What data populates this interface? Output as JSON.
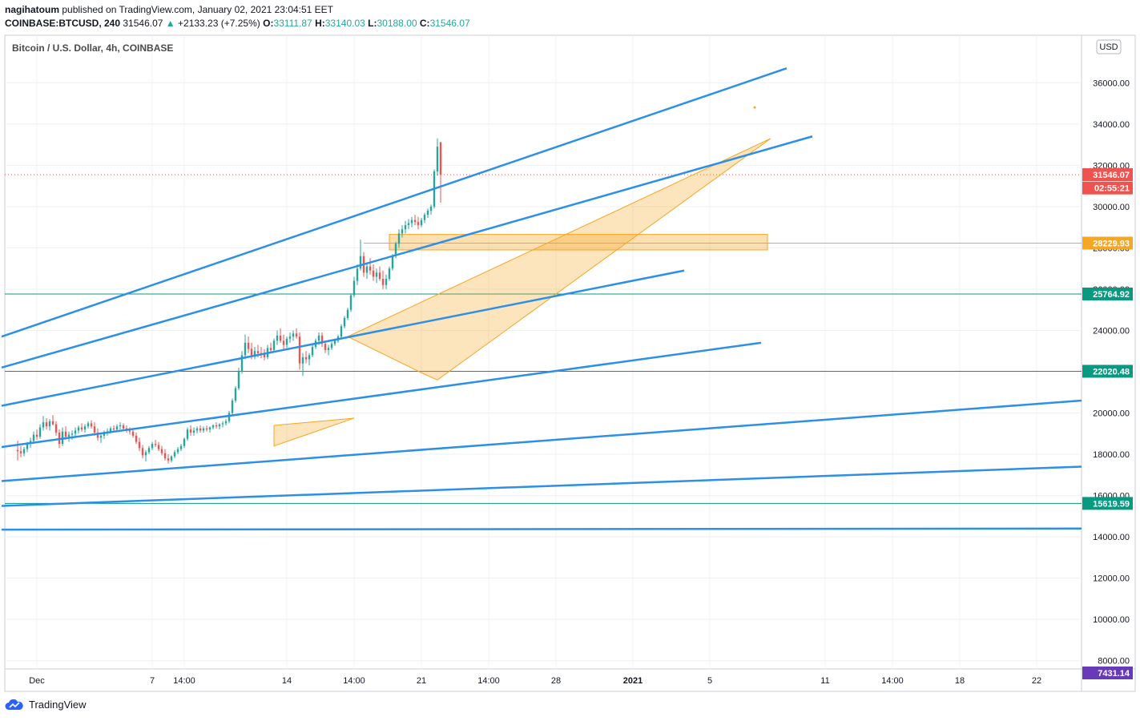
{
  "header": {
    "author": "nagihatoum",
    "published_text": "published on TradingView.com, January 02, 2021 23:04:51 EET",
    "symbol": "COINBASE:BTCUSD, 240",
    "last": "31546.07",
    "arrow": "▲",
    "change": "+2133.23 (+7.25%)",
    "o_label": "O:",
    "o": "33111.87",
    "h_label": "H:",
    "h": "33140.03",
    "l_label": "L:",
    "l": "30188.00",
    "c_label": "C:",
    "c": "31546.07"
  },
  "footer": {
    "brand": "TradingView"
  },
  "chart_data": {
    "type": "candlestick",
    "title": "Bitcoin / U.S. Dollar, 4h, COINBASE",
    "currency": "USD",
    "ylim": [
      7600,
      38300
    ],
    "y_ticks": [
      {
        "label": "36000.00",
        "value": 36000
      },
      {
        "label": "34000.00",
        "value": 34000
      },
      {
        "label": "32000.00",
        "value": 32000
      },
      {
        "label": "30000.00",
        "value": 30000
      },
      {
        "label": "28000.00",
        "value": 28000
      },
      {
        "label": "26000.00",
        "value": 26000
      },
      {
        "label": "24000.00",
        "value": 24000
      },
      {
        "label": "22000.00",
        "value": 22000
      },
      {
        "label": "20000.00",
        "value": 20000
      },
      {
        "label": "18000.00",
        "value": 18000
      },
      {
        "label": "16000.00",
        "value": 16000
      },
      {
        "label": "14000.00",
        "value": 14000
      },
      {
        "label": "12000.00",
        "value": 12000
      },
      {
        "label": "10000.00",
        "value": 10000
      },
      {
        "label": "8000.00",
        "value": 8000
      }
    ],
    "x_ticks": [
      {
        "label": "Dec",
        "bar": 6
      },
      {
        "label": "7",
        "bar": 42
      },
      {
        "label": "14:00",
        "bar": 52
      },
      {
        "label": "14",
        "bar": 84
      },
      {
        "label": "14:00",
        "bar": 105
      },
      {
        "label": "21",
        "bar": 126
      },
      {
        "label": "14:00",
        "bar": 147
      },
      {
        "label": "28",
        "bar": 168
      },
      {
        "label": "2021",
        "bar": 192
      },
      {
        "label": "5",
        "bar": 216
      },
      {
        "label": "11",
        "bar": 252
      },
      {
        "label": "14:00",
        "bar": 273
      },
      {
        "label": "18",
        "bar": 294
      },
      {
        "label": "22",
        "bar": 318
      }
    ],
    "x_range_bars": [
      -4,
      332
    ],
    "price_levels": [
      {
        "label": "31546.07",
        "value": 31546.07,
        "color": "#ef5350",
        "style": "dotted"
      },
      {
        "label": "28229.93",
        "value": 28229.93,
        "color": "#f5a623",
        "style": "solid"
      },
      {
        "label": "25764.92",
        "value": 25764.92,
        "color": "#089981",
        "style": "solid"
      },
      {
        "label": "22020.48",
        "value": 22020.48,
        "color": "#089981",
        "style": "solid"
      },
      {
        "label": "15619.59",
        "value": 15619.59,
        "color": "#089981",
        "style": "solid"
      }
    ],
    "countdown": {
      "label": "02:55:21",
      "value": 30900
    },
    "low_label": {
      "label": "7431.14",
      "value": 7431.14
    },
    "candles": [
      [
        18200,
        18650,
        17700,
        18150
      ],
      [
        18150,
        18400,
        17850,
        18050
      ],
      [
        18050,
        18350,
        17900,
        18250
      ],
      [
        18250,
        18600,
        18100,
        18500
      ],
      [
        18500,
        18800,
        18300,
        18650
      ],
      [
        18650,
        19100,
        18500,
        18950
      ],
      [
        18950,
        19200,
        18700,
        18850
      ],
      [
        18850,
        19450,
        18750,
        19300
      ],
      [
        19300,
        19850,
        19150,
        19550
      ],
      [
        19550,
        19750,
        19200,
        19350
      ],
      [
        19350,
        19700,
        19150,
        19600
      ],
      [
        19600,
        19900,
        19400,
        19450
      ],
      [
        19450,
        19600,
        18900,
        19050
      ],
      [
        19050,
        19200,
        18300,
        18500
      ],
      [
        18500,
        19300,
        18400,
        19100
      ],
      [
        19100,
        19350,
        18700,
        18850
      ],
      [
        18850,
        19100,
        18600,
        18950
      ],
      [
        18950,
        19150,
        18700,
        19000
      ],
      [
        19000,
        19300,
        18850,
        19150
      ],
      [
        19150,
        19400,
        19000,
        19300
      ],
      [
        19300,
        19500,
        19100,
        19200
      ],
      [
        19200,
        19450,
        19050,
        19350
      ],
      [
        19350,
        19600,
        19250,
        19500
      ],
      [
        19500,
        19650,
        19250,
        19350
      ],
      [
        19350,
        19550,
        18900,
        19050
      ],
      [
        19050,
        19250,
        18650,
        18800
      ],
      [
        18800,
        19000,
        18550,
        18900
      ],
      [
        18900,
        19150,
        18750,
        19050
      ],
      [
        19050,
        19250,
        18900,
        19100
      ],
      [
        19100,
        19350,
        19000,
        19250
      ],
      [
        19250,
        19400,
        19100,
        19200
      ],
      [
        19200,
        19450,
        19100,
        19350
      ],
      [
        19350,
        19550,
        19200,
        19400
      ],
      [
        19400,
        19500,
        19150,
        19250
      ],
      [
        19250,
        19400,
        19050,
        19150
      ],
      [
        19150,
        19300,
        18950,
        19100
      ],
      [
        19100,
        19250,
        18800,
        18900
      ],
      [
        18900,
        19050,
        18500,
        18600
      ],
      [
        18600,
        18800,
        18150,
        18300
      ],
      [
        18300,
        18450,
        17800,
        17950
      ],
      [
        17950,
        18200,
        17650,
        18100
      ],
      [
        18100,
        18400,
        18000,
        18300
      ],
      [
        18300,
        18600,
        18200,
        18500
      ],
      [
        18500,
        18700,
        18350,
        18450
      ],
      [
        18450,
        18600,
        18150,
        18250
      ],
      [
        18250,
        18400,
        17950,
        18050
      ],
      [
        18050,
        18250,
        17700,
        17800
      ],
      [
        17800,
        18000,
        17550,
        17700
      ],
      [
        17700,
        17950,
        17600,
        17900
      ],
      [
        17900,
        18200,
        17800,
        18100
      ],
      [
        18100,
        18350,
        18000,
        18250
      ],
      [
        18250,
        18500,
        18150,
        18400
      ],
      [
        18400,
        18800,
        18300,
        18750
      ],
      [
        18750,
        19300,
        18650,
        19200
      ],
      [
        19200,
        19400,
        18900,
        19050
      ],
      [
        19050,
        19300,
        18900,
        19150
      ],
      [
        19150,
        19350,
        19000,
        19250
      ],
      [
        19250,
        19400,
        19050,
        19150
      ],
      [
        19150,
        19350,
        19050,
        19250
      ],
      [
        19250,
        19400,
        19100,
        19200
      ],
      [
        19200,
        19350,
        19050,
        19300
      ],
      [
        19300,
        19450,
        19200,
        19400
      ],
      [
        19400,
        19550,
        19250,
        19350
      ],
      [
        19350,
        19500,
        19200,
        19450
      ],
      [
        19450,
        19600,
        19300,
        19500
      ],
      [
        19500,
        19700,
        19400,
        19600
      ],
      [
        19600,
        20100,
        19500,
        20000
      ],
      [
        20000,
        20700,
        19900,
        20600
      ],
      [
        20600,
        21300,
        20500,
        21200
      ],
      [
        21200,
        22200,
        21100,
        22000
      ],
      [
        22000,
        23000,
        21900,
        22800
      ],
      [
        22800,
        23800,
        22600,
        23400
      ],
      [
        23400,
        23700,
        22900,
        23100
      ],
      [
        23100,
        23400,
        22600,
        22800
      ],
      [
        22800,
        23200,
        22600,
        23000
      ],
      [
        23000,
        23300,
        22700,
        22900
      ],
      [
        22900,
        23200,
        22650,
        22850
      ],
      [
        22850,
        23100,
        22550,
        22700
      ],
      [
        22700,
        23300,
        22600,
        23150
      ],
      [
        23150,
        23400,
        22900,
        23050
      ],
      [
        23050,
        23600,
        22950,
        23500
      ],
      [
        23500,
        24000,
        23300,
        23750
      ],
      [
        23750,
        24100,
        23400,
        23500
      ],
      [
        23500,
        23800,
        23100,
        23300
      ],
      [
        23300,
        23700,
        23150,
        23600
      ],
      [
        23600,
        23900,
        23400,
        23700
      ],
      [
        23700,
        24000,
        23500,
        23850
      ],
      [
        23850,
        24100,
        23600,
        23700
      ],
      [
        23700,
        23900,
        22100,
        22400
      ],
      [
        22400,
        22900,
        21800,
        22700
      ],
      [
        22700,
        23000,
        22400,
        22600
      ],
      [
        22600,
        22900,
        22300,
        22800
      ],
      [
        22800,
        23300,
        22700,
        23200
      ],
      [
        23200,
        23600,
        23100,
        23500
      ],
      [
        23500,
        23900,
        23300,
        23750
      ],
      [
        23750,
        23900,
        23200,
        23350
      ],
      [
        23350,
        23500,
        22900,
        23050
      ],
      [
        23050,
        23300,
        22800,
        23150
      ],
      [
        23150,
        23450,
        23050,
        23350
      ],
      [
        23350,
        23600,
        23250,
        23500
      ],
      [
        23500,
        23800,
        23400,
        23700
      ],
      [
        23700,
        24300,
        23600,
        24200
      ],
      [
        24200,
        24700,
        24100,
        24600
      ],
      [
        24600,
        25100,
        24500,
        25000
      ],
      [
        25000,
        25800,
        24900,
        25700
      ],
      [
        25700,
        26600,
        25600,
        26400
      ],
      [
        26400,
        27200,
        26200,
        27000
      ],
      [
        27000,
        28400,
        26900,
        27600
      ],
      [
        27600,
        27800,
        26600,
        26800
      ],
      [
        26800,
        27300,
        26500,
        27100
      ],
      [
        27100,
        27500,
        26700,
        26900
      ],
      [
        26900,
        27200,
        26400,
        26600
      ],
      [
        26600,
        27000,
        26300,
        26800
      ],
      [
        26800,
        27100,
        26400,
        26500
      ],
      [
        26500,
        26900,
        26000,
        26200
      ],
      [
        26200,
        26700,
        26000,
        26500
      ],
      [
        26500,
        27100,
        26400,
        27000
      ],
      [
        27000,
        27700,
        26900,
        27600
      ],
      [
        27600,
        28300,
        27500,
        28200
      ],
      [
        28200,
        28900,
        28000,
        28700
      ],
      [
        28700,
        29100,
        28500,
        28900
      ],
      [
        28900,
        29300,
        28700,
        29100
      ],
      [
        29100,
        29400,
        28900,
        29200
      ],
      [
        29200,
        29500,
        29000,
        29350
      ],
      [
        29350,
        29600,
        29100,
        29250
      ],
      [
        29250,
        29500,
        28900,
        29100
      ],
      [
        29100,
        29450,
        29000,
        29350
      ],
      [
        29350,
        29700,
        29200,
        29600
      ],
      [
        29600,
        29900,
        29450,
        29800
      ],
      [
        29800,
        30100,
        29600,
        30000
      ],
      [
        30000,
        31800,
        29900,
        31700
      ],
      [
        31700,
        33300,
        31500,
        32900
      ],
      [
        33111.87,
        33140.03,
        30188,
        31546.07
      ]
    ],
    "trend_lines": [
      {
        "from": [
          -5,
          23700
        ],
        "to": [
          240,
          36700
        ]
      },
      {
        "from": [
          -5,
          22200
        ],
        "to": [
          248,
          33400
        ]
      },
      {
        "from": [
          -5,
          20350
        ],
        "to": [
          208,
          26900
        ]
      },
      {
        "from": [
          -5,
          18350
        ],
        "to": [
          232,
          23400
        ]
      },
      {
        "from": [
          -5,
          16700
        ],
        "to": [
          332,
          20600
        ]
      },
      {
        "from": [
          -5,
          15500
        ],
        "to": [
          332,
          17400
        ]
      },
      {
        "from": [
          -5,
          14350
        ],
        "to": [
          332,
          14400
        ]
      }
    ],
    "patterns": [
      {
        "points": [
          [
            103,
            23700
          ],
          [
            126,
            21950
          ],
          [
            131,
            21600
          ],
          [
            235,
            33300
          ]
        ]
      },
      {
        "points": [
          [
            80,
            19400
          ],
          [
            105,
            19750
          ],
          [
            80,
            18400
          ]
        ]
      }
    ],
    "zone": {
      "from_bar": 116,
      "to_bar": 234,
      "low": 27900,
      "high": 28650
    }
  }
}
